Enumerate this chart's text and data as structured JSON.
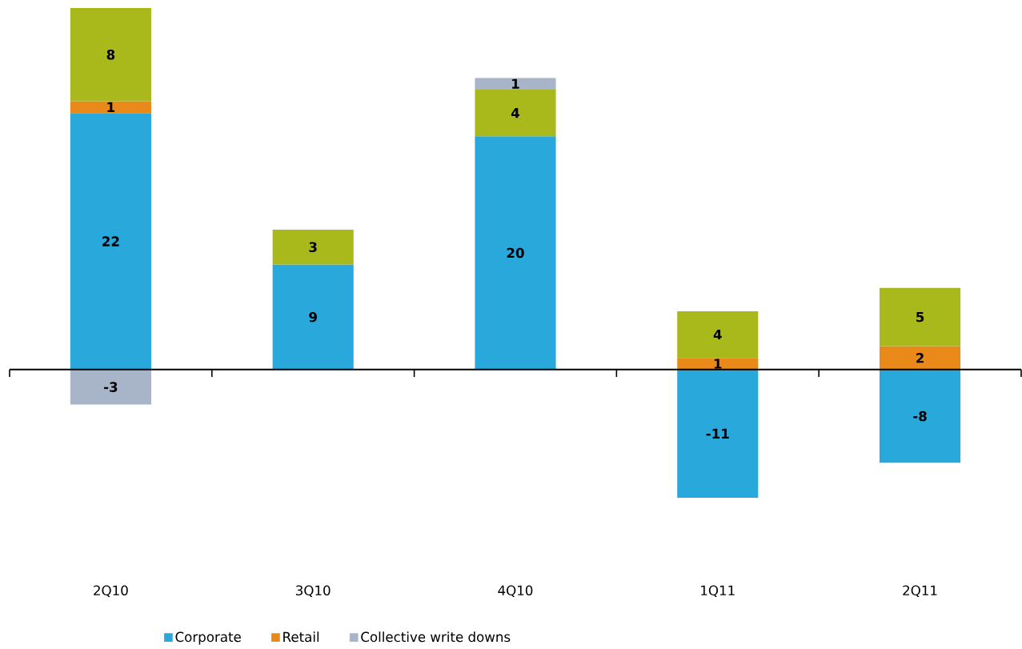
{
  "chart_data": {
    "type": "bar",
    "stacked": true,
    "categories": [
      "2Q10",
      "3Q10",
      "4Q10",
      "1Q11",
      "2Q11"
    ],
    "series": [
      {
        "name": "Corporate",
        "color": "#29a8dc",
        "values": [
          22,
          9,
          20,
          -11,
          -8
        ]
      },
      {
        "name": "Retail",
        "color": "#e8891a",
        "values": [
          1,
          null,
          null,
          1,
          2
        ]
      },
      {
        "color": "#a9b81a",
        "values": [
          8,
          3,
          4,
          4,
          5
        ]
      },
      {
        "name": "Collective write downs",
        "color": "#a8b4c8",
        "values": [
          -3,
          null,
          1,
          null,
          null
        ]
      }
    ],
    "data_labels": true,
    "legend": "bottom"
  }
}
